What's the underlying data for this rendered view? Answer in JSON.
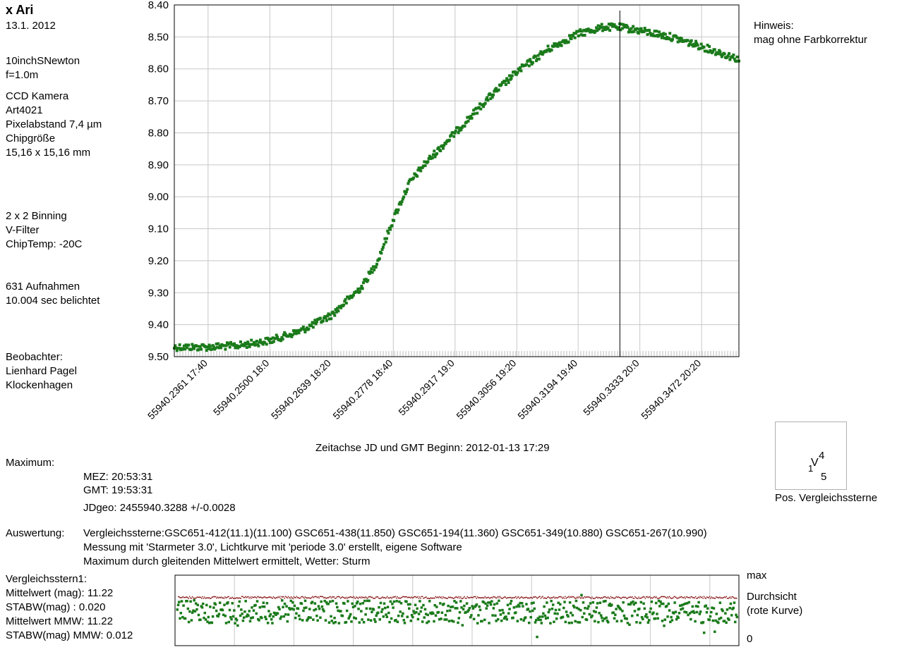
{
  "star": {
    "name": "x Ari",
    "date": "13.1. 2012"
  },
  "instrument": {
    "telescope": "10inchSNewton",
    "focal": "f=1.0m",
    "camera_lines": [
      "CCD Kamera",
      "Art4021",
      "Pixelabstand 7,4 µm",
      "Chipgröße",
      "15,16 x 15,16 mm"
    ],
    "settings_lines": [
      "2 x 2 Binning",
      "V-Filter",
      "ChipTemp: -20C"
    ],
    "exposure_lines": [
      "631 Aufnahmen",
      "10.004 sec belichtet"
    ],
    "observer_lines": [
      "Beobachter:",
      "Lienhard Pagel",
      "Klockenhagen"
    ]
  },
  "note": {
    "line1": "Hinweis:",
    "line2": "mag ohne Farbkorrektur"
  },
  "maximum": {
    "label": "Maximum:",
    "mez": "MEZ:   20:53:31",
    "gmt": "GMT:   19:53:31",
    "jd": "JDgeo: 2455940.3288    +/-0.0028"
  },
  "evaluation": {
    "label": "Auswertung:",
    "line1": "Vergleichssterne:GSC651-412(11.1)(11.100) GSC651-438(11.850) GSC651-194(11.360) GSC651-349(10.880) GSC651-267(10.990)",
    "line2": "Messung mit 'Starmeter 3.0', Lichtkurve mit 'periode 3.0' erstellt, eigene Software",
    "line3": "Maximum durch gleitenden Mittelwert ermittelt, Wetter: Sturm"
  },
  "comparison": {
    "title": "Vergleichsstern1:",
    "mean": "Mittelwert (mag): 11.22",
    "std": "STABW(mag)     : 0.020",
    "mean_mmw": "Mittelwert MMW: 11.22",
    "std_mmw": "STABW(mag) MMW: 0.012"
  },
  "transparency": {
    "max_label": "max",
    "label1": "Durchsicht",
    "label2": "(rote Kurve)",
    "zero_label": "0"
  },
  "positions": {
    "caption": "Pos. Vergleichssterne",
    "v_label": "V",
    "n4": "4",
    "n1": "1",
    "n5": "5"
  },
  "chart_data": {
    "type": "scatter",
    "xlabel": "Zeitachse JD und GMT  Beginn: 2012-01-13    17:29",
    "ylabel": "",
    "y_tick_labels": [
      "8.40",
      "8.50",
      "8.60",
      "8.70",
      "8.80",
      "8.90",
      "9.00",
      "9.10",
      "9.20",
      "9.30",
      "9.40",
      "9.50"
    ],
    "ylim": [
      9.5,
      8.4
    ],
    "y_inverted": true,
    "x_tick_labels": [
      "55940.2361  17:40",
      "55940.2500  18:0",
      "55940.2639  18:20",
      "55940.2778  18:40",
      "55940.2917  19:0",
      "55940.3056  19:20",
      "55940.3194  19:40",
      "55940.3333  20:0",
      "55940.3472  20:20"
    ],
    "x_tick_jd": [
      55940.2361,
      55940.25,
      55940.2639,
      55940.2778,
      55940.2917,
      55940.3056,
      55940.3194,
      55940.3333,
      55940.3472
    ],
    "xlim_jd": [
      55940.2285,
      55940.3556
    ],
    "maximum_marker_jd": 55940.3288,
    "marker_color": "#1a7a1a",
    "grid": true,
    "series": [
      {
        "color": "#1a7a1a",
        "x": [
          55940.2285,
          55940.2361,
          55940.2431,
          55940.25,
          55940.2569,
          55940.2639,
          55940.2708,
          55940.2743,
          55940.2778,
          55940.2813,
          55940.2847,
          55940.2917,
          55940.2986,
          55940.3056,
          55940.3125,
          55940.3194,
          55940.325,
          55940.3288,
          55940.3333,
          55940.3403,
          55940.3472,
          55940.3556
        ],
        "y": [
          9.47,
          9.47,
          9.465,
          9.45,
          9.42,
          9.37,
          9.28,
          9.2,
          9.07,
          8.96,
          8.9,
          8.8,
          8.7,
          8.61,
          8.54,
          8.49,
          8.47,
          8.47,
          8.48,
          8.5,
          8.53,
          8.57
        ]
      }
    ]
  },
  "transparency_data": {
    "comparison_color": "#1a7a1a",
    "transparency_color": "#8b1a1a",
    "comparison_mean_mag": 11.22,
    "comparison_std_mag": 0.02
  }
}
